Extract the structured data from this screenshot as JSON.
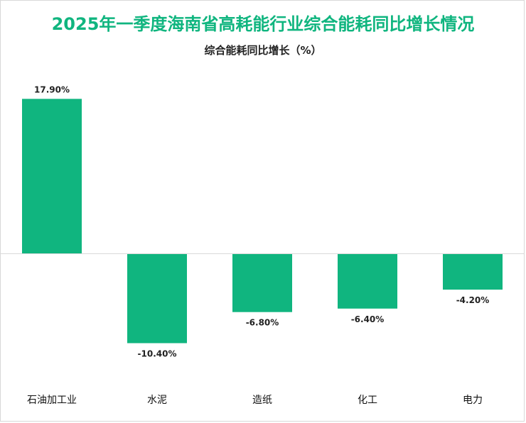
{
  "chart_data": {
    "type": "bar",
    "title": "2025年一季度海南省高耗能行业综合能耗同比增长情况",
    "subtitle": "综合能耗同比增长（%）",
    "categories": [
      "石油加工业",
      "水泥",
      "造纸",
      "化工",
      "电力"
    ],
    "values": [
      17.9,
      -10.4,
      -6.8,
      -6.4,
      -4.2
    ],
    "value_labels": [
      "17.90%",
      "-10.40%",
      "-6.80%",
      "-6.40%",
      "-4.20%"
    ],
    "unit": "%",
    "ylim": [
      -10.4,
      17.9
    ],
    "grid": false,
    "legend": "none",
    "bar_color": "#10b57f",
    "title_color": "#10b57f"
  }
}
